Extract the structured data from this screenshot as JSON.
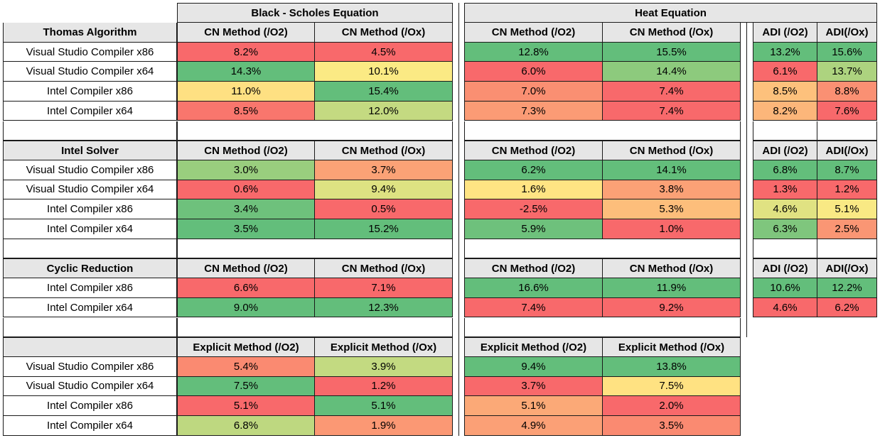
{
  "equations": [
    "Black - Scholes Equation",
    "Heat Equation"
  ],
  "headers": {
    "cn_o2": "CN Method (/O2)",
    "cn_ox": "CN Method (/Ox)",
    "adi_o2": "ADI (/O2)",
    "adi_ox": "ADI(/Ox)",
    "ex_o2": "Explicit Method (/O2)",
    "ex_ox": "Explicit Method (/Ox)"
  },
  "color_scale": {
    "low": "#f8696b",
    "mid": "#ffeb84",
    "high": "#63be7b"
  },
  "chart_data": {
    "type": "table",
    "sections": [
      {
        "name": "Thomas Algorithm",
        "bs_columns": [
          "CN Method (/O2)",
          "CN Method (/Ox)"
        ],
        "heat_columns": [
          "CN Method (/O2)",
          "CN Method (/Ox)"
        ],
        "adi_columns": [
          "ADI (/O2)",
          "ADI(/Ox)"
        ],
        "rows": [
          {
            "label": "Visual Studio Compiler x86",
            "bs": [
              "8.2%",
              "4.5%"
            ],
            "heat": [
              "12.8%",
              "15.5%"
            ],
            "adi": [
              "13.2%",
              "15.6%"
            ]
          },
          {
            "label": "Visual Studio Compiler x64",
            "bs": [
              "14.3%",
              "10.1%"
            ],
            "heat": [
              "6.0%",
              "14.4%"
            ],
            "adi": [
              "6.1%",
              "13.7%"
            ]
          },
          {
            "label": "Intel Compiler x86",
            "bs": [
              "11.0%",
              "15.4%"
            ],
            "heat": [
              "7.0%",
              "7.4%"
            ],
            "adi": [
              "8.5%",
              "8.8%"
            ]
          },
          {
            "label": "Intel Compiler x64",
            "bs": [
              "8.5%",
              "12.0%"
            ],
            "heat": [
              "7.3%",
              "7.4%"
            ],
            "adi": [
              "8.2%",
              "7.6%"
            ]
          }
        ]
      },
      {
        "name": "Intel Solver",
        "bs_columns": [
          "CN Method (/O2)",
          "CN Method (/Ox)"
        ],
        "heat_columns": [
          "CN Method (/O2)",
          "CN Method (/Ox)"
        ],
        "adi_columns": [
          "ADI (/O2)",
          "ADI(/Ox)"
        ],
        "rows": [
          {
            "label": "Visual Studio Compiler x86",
            "bs": [
              "3.0%",
              "3.7%"
            ],
            "heat": [
              "6.2%",
              "14.1%"
            ],
            "adi": [
              "6.8%",
              "8.7%"
            ]
          },
          {
            "label": "Visual Studio Compiler x64",
            "bs": [
              "0.6%",
              "9.4%"
            ],
            "heat": [
              "1.6%",
              "3.8%"
            ],
            "adi": [
              "1.3%",
              "1.2%"
            ]
          },
          {
            "label": "Intel Compiler x86",
            "bs": [
              "3.4%",
              "0.5%"
            ],
            "heat": [
              "-2.5%",
              "5.3%"
            ],
            "adi": [
              "4.6%",
              "5.1%"
            ]
          },
          {
            "label": "Intel Compiler x64",
            "bs": [
              "3.5%",
              "15.2%"
            ],
            "heat": [
              "5.9%",
              "1.0%"
            ],
            "adi": [
              "6.3%",
              "2.5%"
            ]
          }
        ]
      },
      {
        "name": "Cyclic Reduction",
        "bs_columns": [
          "CN Method (/O2)",
          "CN Method (/Ox)"
        ],
        "heat_columns": [
          "CN Method (/O2)",
          "CN Method (/Ox)"
        ],
        "adi_columns": [
          "ADI (/O2)",
          "ADI(/Ox)"
        ],
        "rows": [
          {
            "label": "Intel Compiler x86",
            "bs": [
              "6.6%",
              "7.1%"
            ],
            "heat": [
              "16.6%",
              "11.9%"
            ],
            "adi": [
              "10.6%",
              "12.2%"
            ]
          },
          {
            "label": "Intel Compiler x64",
            "bs": [
              "9.0%",
              "12.3%"
            ],
            "heat": [
              "7.4%",
              "9.2%"
            ],
            "adi": [
              "4.6%",
              "6.2%"
            ]
          }
        ]
      },
      {
        "name": "",
        "bs_columns": [
          "Explicit Method (/O2)",
          "Explicit Method (/Ox)"
        ],
        "heat_columns": [
          "Explicit Method (/O2)",
          "Explicit Method (/Ox)"
        ],
        "adi_columns": [],
        "rows": [
          {
            "label": "Visual Studio Compiler x86",
            "bs": [
              "5.4%",
              "3.9%"
            ],
            "heat": [
              "9.4%",
              "13.8%"
            ],
            "adi": []
          },
          {
            "label": "Visual Studio Compiler x64",
            "bs": [
              "7.5%",
              "1.2%"
            ],
            "heat": [
              "3.7%",
              "7.5%"
            ],
            "adi": []
          },
          {
            "label": "Intel Compiler x86",
            "bs": [
              "5.1%",
              "5.1%"
            ],
            "heat": [
              "5.1%",
              "2.0%"
            ],
            "adi": []
          },
          {
            "label": "Intel Compiler x64",
            "bs": [
              "6.8%",
              "1.9%"
            ],
            "heat": [
              "4.9%",
              "3.5%"
            ],
            "adi": []
          }
        ]
      }
    ]
  }
}
